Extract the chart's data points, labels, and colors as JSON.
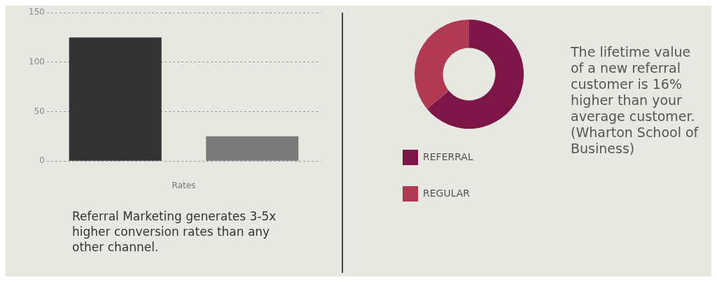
{
  "chart_data": [
    {
      "type": "bar",
      "categories": [
        null,
        null
      ],
      "values": [
        125,
        25
      ],
      "colors": [
        "#333333",
        "#7a7a7a"
      ],
      "xlabel": "Rates",
      "ylim": [
        0,
        150
      ],
      "yticks": [
        0,
        50,
        100,
        150
      ],
      "grid": "y",
      "annotations": [
        "Referral Marketing generates 3-5x higher conversion rates than any other channel."
      ]
    },
    {
      "type": "donut",
      "categories": [
        "REFERRAL",
        "REGULAR"
      ],
      "values": [
        64,
        36
      ],
      "colors": [
        "#7e1547",
        "#b03a52"
      ],
      "legend": "bottom",
      "annotations": [
        "The lifetime value of a new referral customer is 16% higher than your average customer. (Wharton School of Business)"
      ]
    }
  ]
}
